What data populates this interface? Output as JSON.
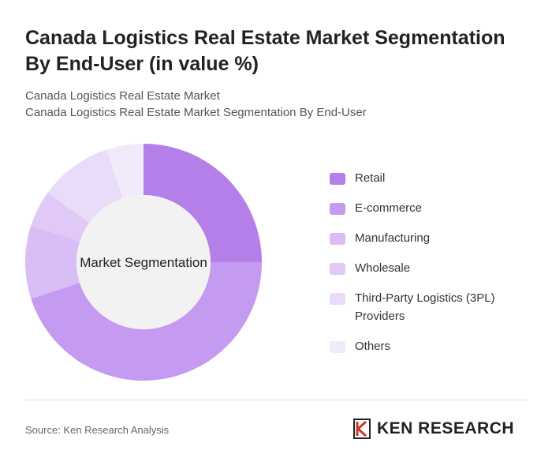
{
  "chart_data": {
    "type": "donut",
    "title": "Canada Logistics Real Estate Market Segmentation By End-User (in value %)",
    "subtitle": [
      "Canada Logistics Real Estate Market",
      "Canada Logistics Real Estate Market Segmentation By End-User"
    ],
    "center_label": "Market Segmentation",
    "categories": [
      "Retail",
      "E-commerce",
      "Manufacturing",
      "Wholesale",
      "Third-Party Logistics (3PL) Providers",
      "Others"
    ],
    "values": [
      25,
      45,
      10,
      5,
      10,
      5
    ],
    "colors": [
      "#b57fe9",
      "#c49bf0",
      "#d9bdf5",
      "#e0c9f7",
      "#e9dcf9",
      "#f1eafb"
    ],
    "source": "Source: Ken Research Analysis",
    "logo": "KEN RESEARCH"
  }
}
